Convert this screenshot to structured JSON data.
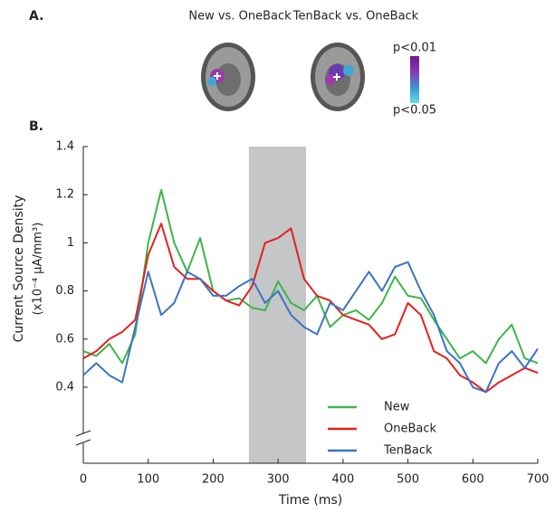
{
  "panel_a": {
    "label": "A.",
    "titles": [
      "New vs. OneBack",
      "TenBack vs. OneBack"
    ],
    "colorbar_labels": [
      "p<0.01",
      "p<0.05"
    ]
  },
  "chart_data": {
    "type": "line",
    "panel_label": "B.",
    "x_label": "Time (ms)",
    "y_label": [
      "Current Source Density",
      "(x10⁻⁴ μA/mm³)"
    ],
    "x": [
      0,
      20,
      40,
      60,
      80,
      100,
      120,
      140,
      160,
      180,
      200,
      220,
      240,
      260,
      280,
      300,
      320,
      340,
      360,
      380,
      400,
      420,
      440,
      460,
      480,
      500,
      520,
      540,
      560,
      580,
      600,
      620,
      640,
      660,
      680,
      700
    ],
    "series": [
      {
        "name": "New",
        "color": "#3db54a",
        "values": [
          0.55,
          0.53,
          0.58,
          0.5,
          0.62,
          1.0,
          1.22,
          1.0,
          0.88,
          1.02,
          0.8,
          0.76,
          0.77,
          0.73,
          0.72,
          0.84,
          0.75,
          0.72,
          0.78,
          0.65,
          0.7,
          0.72,
          0.68,
          0.75,
          0.86,
          0.78,
          0.77,
          0.68,
          0.6,
          0.52,
          0.55,
          0.5,
          0.6,
          0.66,
          0.52,
          0.5
        ]
      },
      {
        "name": "OneBack",
        "color": "#e3211c",
        "values": [
          0.52,
          0.55,
          0.6,
          0.63,
          0.68,
          0.95,
          1.08,
          0.9,
          0.85,
          0.85,
          0.8,
          0.76,
          0.74,
          0.82,
          1.0,
          1.02,
          1.06,
          0.85,
          0.78,
          0.76,
          0.7,
          0.68,
          0.66,
          0.6,
          0.62,
          0.75,
          0.7,
          0.55,
          0.52,
          0.45,
          0.42,
          0.38,
          0.42,
          0.45,
          0.48,
          0.46
        ]
      },
      {
        "name": "TenBack",
        "color": "#3b74c2",
        "values": [
          0.45,
          0.5,
          0.45,
          0.42,
          0.65,
          0.88,
          0.7,
          0.75,
          0.88,
          0.85,
          0.78,
          0.78,
          0.82,
          0.85,
          0.75,
          0.8,
          0.7,
          0.65,
          0.62,
          0.75,
          0.72,
          0.8,
          0.88,
          0.8,
          0.9,
          0.92,
          0.8,
          0.7,
          0.55,
          0.5,
          0.4,
          0.38,
          0.5,
          0.55,
          0.48,
          0.56
        ]
      }
    ],
    "highlight_span": [
      255,
      343
    ],
    "highlight_color": "#c4c6c8",
    "xlim": [
      0,
      700
    ],
    "xticks": [
      0,
      100,
      200,
      300,
      400,
      500,
      600,
      700
    ],
    "ylim": [
      0.4,
      1.4
    ],
    "yticks": [
      0.4,
      0.6,
      0.8,
      1,
      1.2,
      1.4
    ],
    "legend_position": "lower right"
  }
}
